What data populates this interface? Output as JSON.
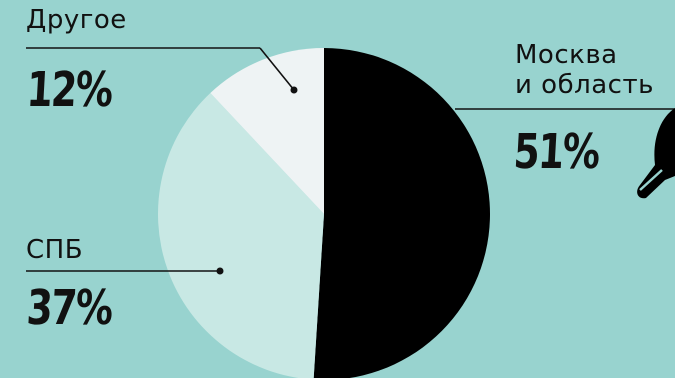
{
  "chart_data": {
    "type": "pie",
    "title": "",
    "slices": [
      {
        "key": "moskva",
        "label": "Москва\nи область",
        "value": 51,
        "value_label": "51%",
        "color": "#000000"
      },
      {
        "key": "spb",
        "label": "СПБ",
        "value": 37,
        "value_label": "37%",
        "color": "#c8e8e4"
      },
      {
        "key": "drugoe",
        "label": "Другое",
        "value": 12,
        "value_label": "12%",
        "color": "#eef3f4"
      }
    ],
    "legend": "none",
    "label_placement": "outside-with-leader-lines"
  },
  "colors": {
    "background": "#98d3cf",
    "leader_line": "#111111"
  }
}
